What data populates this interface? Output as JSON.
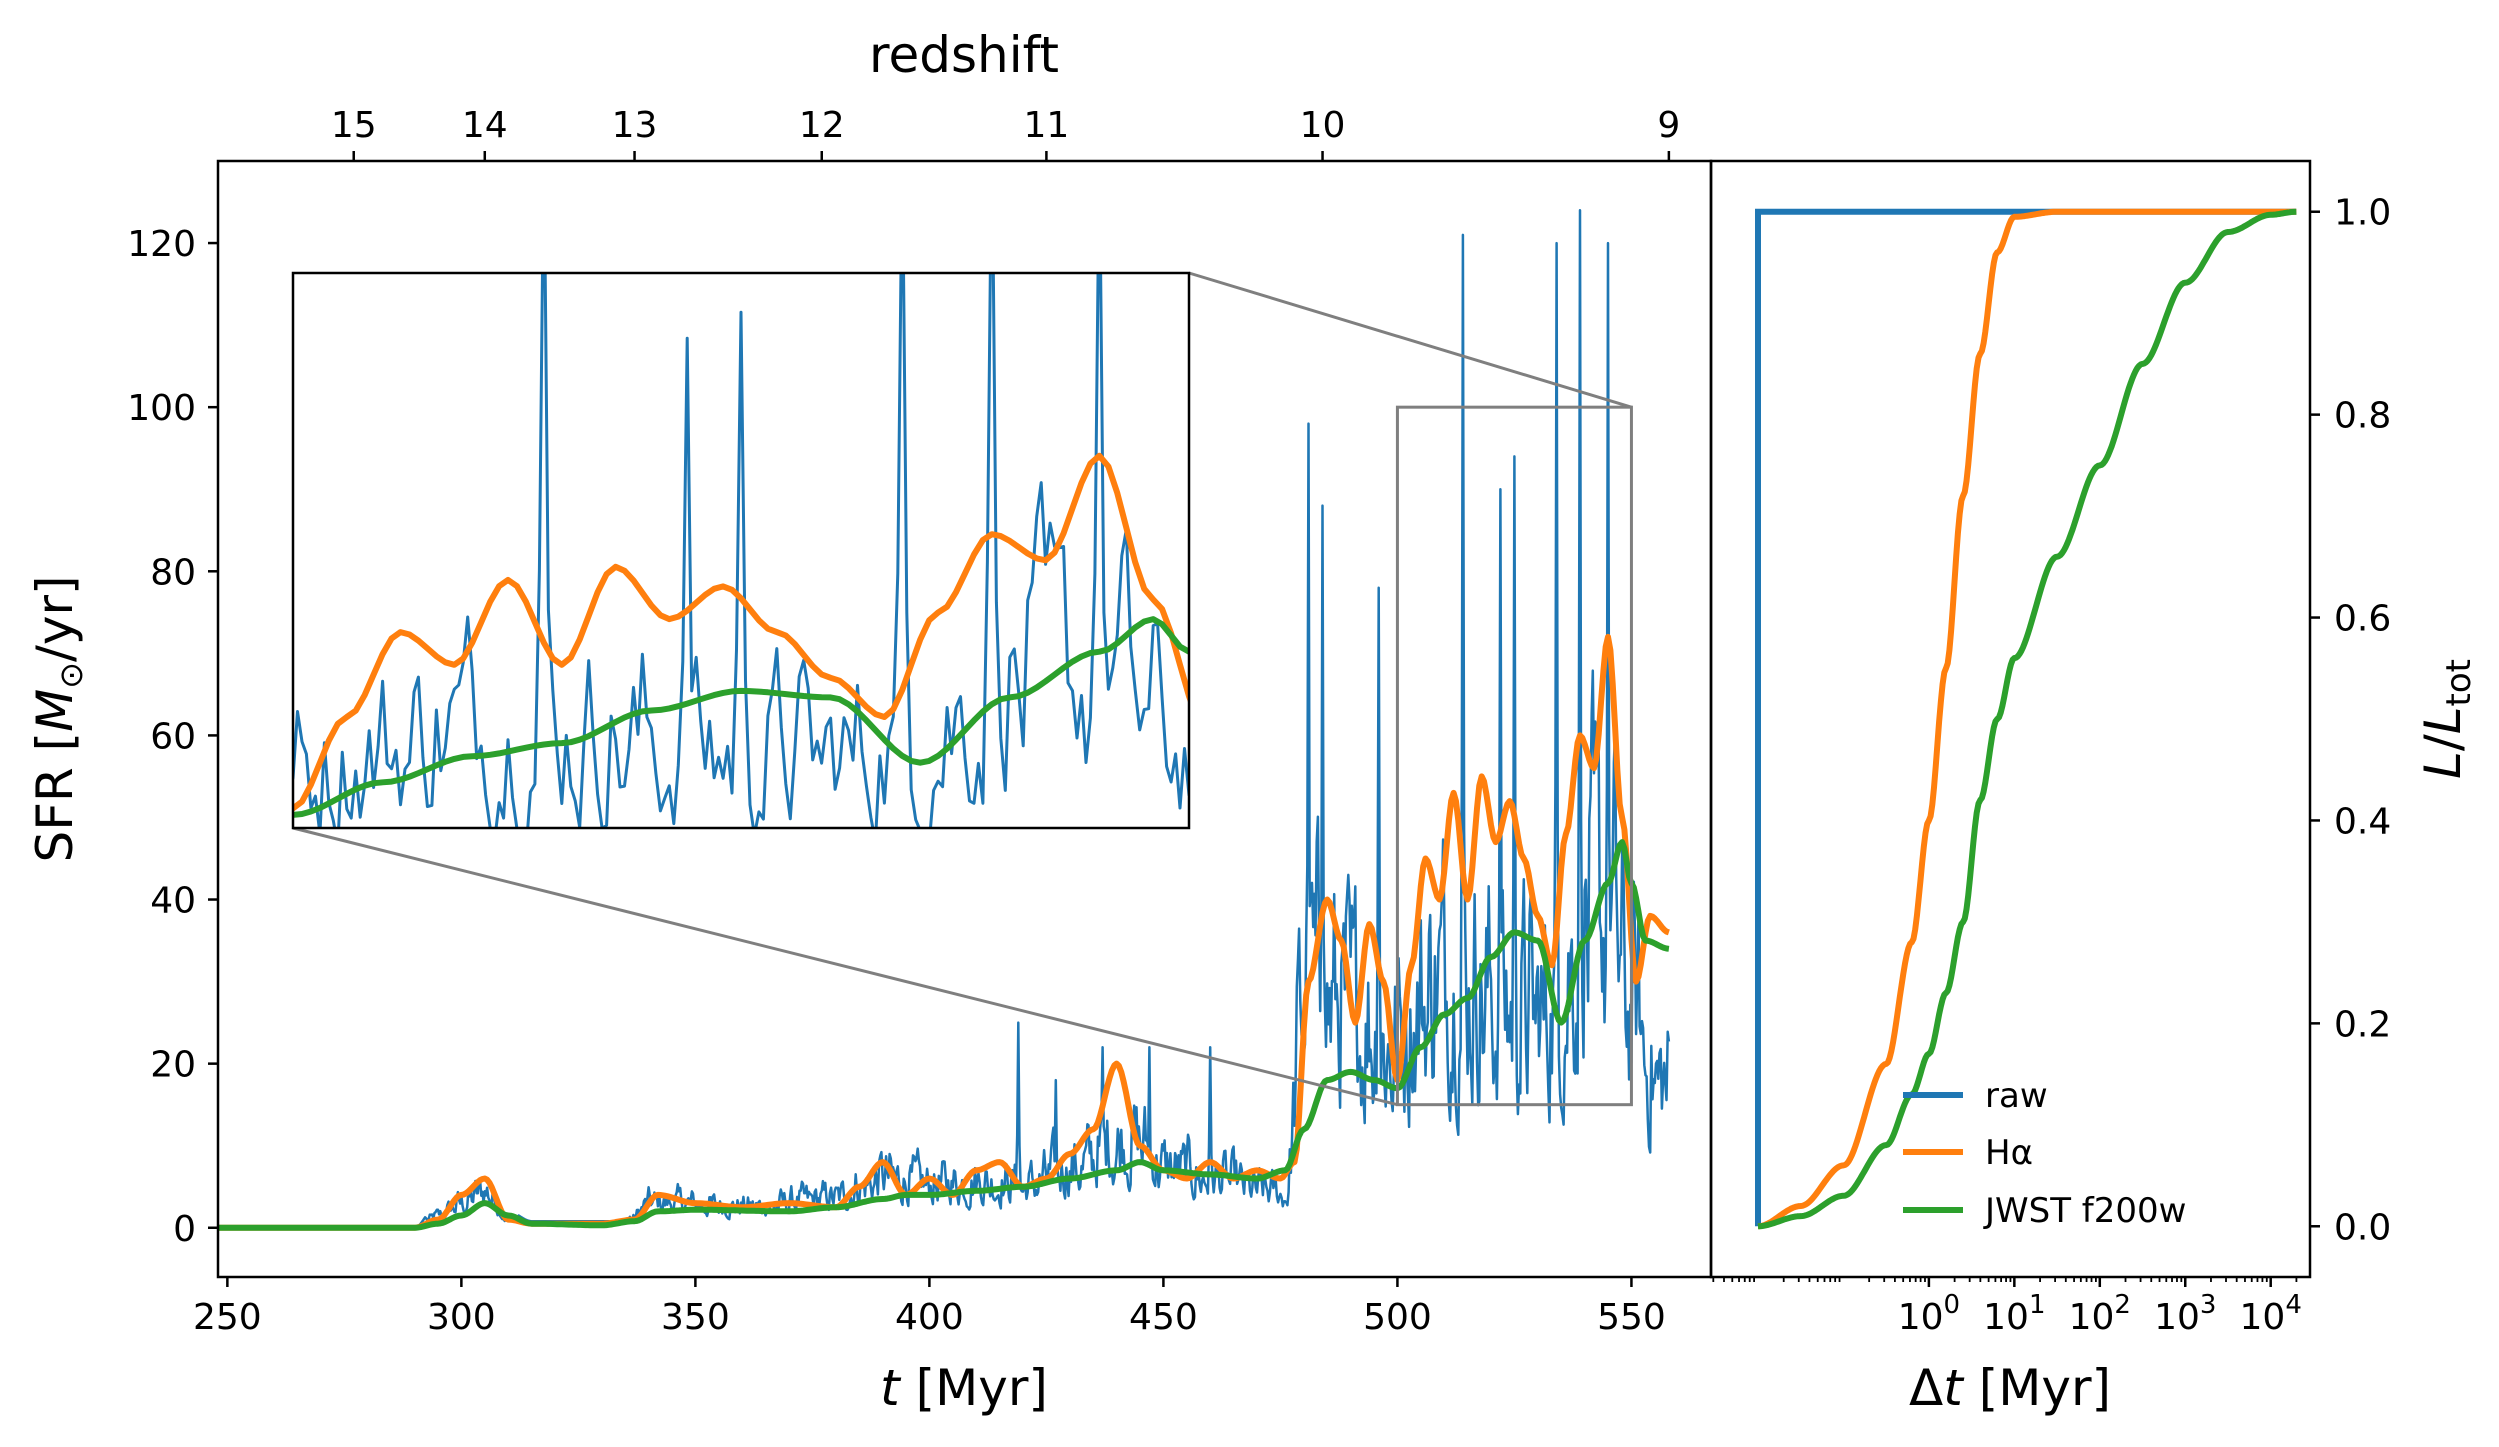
{
  "colors": {
    "raw": "#1f77b4",
    "halpha": "#ff7f0e",
    "jwst": "#2ca02c",
    "zoom": "#7f7f7f"
  },
  "chart_data": [
    {
      "name": "sfr-history",
      "type": "line",
      "title": "",
      "xlabel": "t [Myr]",
      "xlabel_italic": "t",
      "xlabel_rest": " [Myr]",
      "ylabel": "SFR [M⊙/yr]",
      "ylabel_prefix": "SFR [",
      "ylabel_italic": "M",
      "ylabel_sub": "⊙",
      "ylabel_suffix": "/yr]",
      "xlim": [
        248,
        567
      ],
      "ylim": [
        -6,
        130
      ],
      "xticks": [
        250,
        300,
        350,
        400,
        450,
        500,
        550
      ],
      "yticks": [
        0,
        20,
        40,
        60,
        80,
        100,
        120
      ],
      "top_axis": {
        "label": "redshift",
        "ticks": [
          {
            "label": "15",
            "t": 277
          },
          {
            "label": "14",
            "t": 305
          },
          {
            "label": "13",
            "t": 337
          },
          {
            "label": "12",
            "t": 377
          },
          {
            "label": "11",
            "t": 425
          },
          {
            "label": "10",
            "t": 484
          },
          {
            "label": "9",
            "t": 558
          }
        ]
      },
      "series_names": [
        "raw",
        "Hα",
        "JWST f200w"
      ],
      "keypoints": {
        "halpha": [
          [
            248,
            0
          ],
          [
            290,
            0
          ],
          [
            295,
            1
          ],
          [
            300,
            4
          ],
          [
            305,
            6
          ],
          [
            310,
            1
          ],
          [
            315,
            0.5
          ],
          [
            330,
            0.5
          ],
          [
            337,
            1
          ],
          [
            342,
            4
          ],
          [
            350,
            3
          ],
          [
            360,
            2.5
          ],
          [
            370,
            3
          ],
          [
            380,
            2.5
          ],
          [
            385,
            5
          ],
          [
            390,
            8
          ],
          [
            395,
            4
          ],
          [
            400,
            6
          ],
          [
            405,
            4
          ],
          [
            410,
            7
          ],
          [
            415,
            8
          ],
          [
            420,
            5
          ],
          [
            425,
            6
          ],
          [
            430,
            9
          ],
          [
            435,
            12
          ],
          [
            440,
            20
          ],
          [
            445,
            10
          ],
          [
            450,
            7
          ],
          [
            455,
            6
          ],
          [
            460,
            8
          ],
          [
            465,
            6
          ],
          [
            470,
            7
          ],
          [
            475,
            6
          ],
          [
            478,
            8
          ],
          [
            481,
            30
          ],
          [
            485,
            40
          ],
          [
            488,
            35
          ],
          [
            491,
            25
          ],
          [
            494,
            37
          ],
          [
            497,
            30
          ],
          [
            500,
            18
          ],
          [
            503,
            32
          ],
          [
            506,
            45
          ],
          [
            509,
            40
          ],
          [
            512,
            53
          ],
          [
            515,
            40
          ],
          [
            518,
            55
          ],
          [
            521,
            47
          ],
          [
            524,
            52
          ],
          [
            527,
            45
          ],
          [
            530,
            38
          ],
          [
            533,
            32
          ],
          [
            536,
            48
          ],
          [
            539,
            60
          ],
          [
            542,
            56
          ],
          [
            545,
            72
          ],
          [
            548,
            50
          ],
          [
            551,
            30
          ],
          [
            554,
            38
          ],
          [
            558,
            36
          ]
        ],
        "jwst": [
          [
            248,
            0
          ],
          [
            290,
            0
          ],
          [
            295,
            0.5
          ],
          [
            300,
            1.5
          ],
          [
            305,
            3
          ],
          [
            310,
            1.5
          ],
          [
            315,
            0.5
          ],
          [
            330,
            0.3
          ],
          [
            337,
            0.8
          ],
          [
            342,
            2
          ],
          [
            350,
            2.2
          ],
          [
            370,
            2
          ],
          [
            380,
            2.5
          ],
          [
            390,
            3.5
          ],
          [
            395,
            4
          ],
          [
            400,
            4
          ],
          [
            410,
            4.5
          ],
          [
            420,
            5
          ],
          [
            430,
            6
          ],
          [
            440,
            7
          ],
          [
            445,
            8
          ],
          [
            450,
            7
          ],
          [
            460,
            6.5
          ],
          [
            470,
            6
          ],
          [
            476,
            7
          ],
          [
            480,
            12
          ],
          [
            485,
            18
          ],
          [
            490,
            19
          ],
          [
            495,
            18
          ],
          [
            500,
            17
          ],
          [
            505,
            22
          ],
          [
            510,
            26
          ],
          [
            515,
            28
          ],
          [
            520,
            33
          ],
          [
            525,
            36
          ],
          [
            530,
            35
          ],
          [
            535,
            25
          ],
          [
            540,
            35
          ],
          [
            545,
            42
          ],
          [
            548,
            47
          ],
          [
            550,
            42
          ],
          [
            553,
            35
          ],
          [
            558,
            34
          ]
        ],
        "raw_amp": [
          [
            248,
            0
          ],
          [
            290,
            0
          ],
          [
            295,
            3
          ],
          [
            300,
            6
          ],
          [
            305,
            9
          ],
          [
            310,
            2
          ],
          [
            315,
            0.8
          ],
          [
            335,
            0.8
          ],
          [
            340,
            6
          ],
          [
            345,
            6
          ],
          [
            360,
            5
          ],
          [
            380,
            7
          ],
          [
            385,
            10
          ],
          [
            390,
            12
          ],
          [
            400,
            10
          ],
          [
            410,
            11
          ],
          [
            420,
            10
          ],
          [
            430,
            14
          ],
          [
            440,
            20
          ],
          [
            445,
            20
          ],
          [
            450,
            14
          ],
          [
            460,
            12
          ],
          [
            470,
            9
          ],
          [
            476,
            8
          ],
          [
            480,
            60
          ],
          [
            490,
            50
          ],
          [
            500,
            45
          ],
          [
            510,
            60
          ],
          [
            520,
            55
          ],
          [
            530,
            50
          ],
          [
            540,
            70
          ],
          [
            545,
            75
          ],
          [
            550,
            50
          ],
          [
            555,
            35
          ],
          [
            558,
            35
          ]
        ],
        "raw_spikes": [
          [
            419,
            25
          ],
          [
            437,
            22
          ],
          [
            481,
            98
          ],
          [
            484,
            88
          ],
          [
            514,
            121
          ],
          [
            534,
            120
          ],
          [
            539,
            124
          ],
          [
            545,
            120
          ],
          [
            427,
            18
          ],
          [
            447,
            22
          ],
          [
            460,
            22
          ],
          [
            496,
            78
          ],
          [
            522,
            90
          ],
          [
            525,
            94
          ]
        ]
      },
      "zoom_box": {
        "t0": 500,
        "t1": 550,
        "sfr0": 15,
        "sfr1": 100
      }
    },
    {
      "name": "luminosity-cdf",
      "type": "line",
      "xlabel": "Δt [Myr]",
      "xlabel_delta": "Δ",
      "xlabel_italic": "t",
      "xlabel_rest": " [Myr]",
      "ylabel": "L/L_tot",
      "ylabel_italic": "L",
      "ylabel_slash": "/",
      "ylabel_italic2": "L",
      "ylabel_sub": "tot",
      "xscale": "log",
      "xlim_log10": [
        -2.55,
        4.46
      ],
      "ylim": [
        -0.05,
        1.05
      ],
      "yticks": [
        "0.0",
        "0.2",
        "0.4",
        "0.6",
        "0.8",
        "1.0"
      ],
      "yticks_values": [
        0,
        0.2,
        0.4,
        0.6,
        0.8,
        1.0
      ],
      "xticks": [
        {
          "base": "10",
          "exp": "0",
          "log10": 0
        },
        {
          "base": "10",
          "exp": "1",
          "log10": 1
        },
        {
          "base": "10",
          "exp": "2",
          "log10": 2
        },
        {
          "base": "10",
          "exp": "3",
          "log10": 3
        },
        {
          "base": "10",
          "exp": "4",
          "log10": 4
        }
      ],
      "series": [
        {
          "name": "raw",
          "key": "raw",
          "points_log10": [
            [
              -2.0,
              0.0
            ],
            [
              -2.0,
              1.0
            ],
            [
              4.3,
              1.0
            ]
          ]
        },
        {
          "name": "Hα",
          "key": "halpha",
          "points_log10": [
            [
              -2.0,
              0.0
            ],
            [
              -1.5,
              0.02
            ],
            [
              -1.0,
              0.06
            ],
            [
              -0.5,
              0.16
            ],
            [
              -0.2,
              0.28
            ],
            [
              0.0,
              0.4
            ],
            [
              0.2,
              0.55
            ],
            [
              0.4,
              0.72
            ],
            [
              0.6,
              0.86
            ],
            [
              0.8,
              0.96
            ],
            [
              1.0,
              0.995
            ],
            [
              1.5,
              1.0
            ],
            [
              4.3,
              1.0
            ]
          ]
        },
        {
          "name": "JWST f200w",
          "key": "jwst",
          "points_log10": [
            [
              -2.0,
              0.0
            ],
            [
              -1.5,
              0.01
            ],
            [
              -1.0,
              0.03
            ],
            [
              -0.5,
              0.08
            ],
            [
              -0.2,
              0.13
            ],
            [
              0.0,
              0.17
            ],
            [
              0.2,
              0.23
            ],
            [
              0.4,
              0.3
            ],
            [
              0.6,
              0.42
            ],
            [
              0.8,
              0.5
            ],
            [
              1.0,
              0.56
            ],
            [
              1.5,
              0.66
            ],
            [
              2.0,
              0.75
            ],
            [
              2.5,
              0.85
            ],
            [
              3.0,
              0.93
            ],
            [
              3.5,
              0.98
            ],
            [
              4.0,
              0.997
            ],
            [
              4.3,
              1.0
            ]
          ]
        }
      ],
      "legend": {
        "position": "lower-right",
        "entries": [
          {
            "label": "raw",
            "key": "raw"
          },
          {
            "label": "Hα",
            "key": "halpha"
          },
          {
            "label": "JWST f200w",
            "key": "jwst"
          }
        ]
      }
    }
  ]
}
